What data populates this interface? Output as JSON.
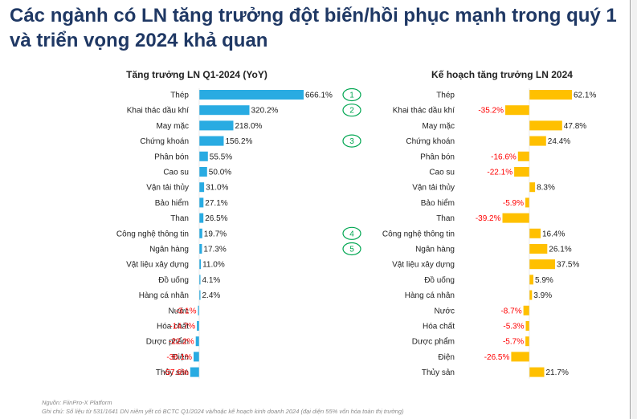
{
  "title_line1": "Các ngành có LN tăng trưởng đột biến/hồi phục mạnh trong quý 1",
  "title_line2": "và triển vọng 2024 khả quan",
  "footer": {
    "source": "Nguồn: FiinPro-X Platform",
    "note": "Ghi chú: Số liệu từ 531/1641 DN niêm yết có BCTC Q1/2024 và/hoặc kế hoạch kinh doanh 2024 (đại diện 55% vốn hóa toàn thị trường)"
  },
  "colors": {
    "left_bar": "#29abe2",
    "right_bar": "#ffc000",
    "negative_label": "#ff0000",
    "marker": "#00a651",
    "title": "#1f3864"
  },
  "chart_data": [
    {
      "type": "bar",
      "orientation": "horizontal",
      "title": "Tăng trưởng LN Q1-2024 (YoY)",
      "categories": [
        "Thép",
        "Khai thác dầu khí",
        "May mặc",
        "Chứng khoán",
        "Phân bón",
        "Cao su",
        "Vận tải thủy",
        "Bảo hiểm",
        "Than",
        "Công nghệ thông tin",
        "Ngân hàng",
        "Vật liệu xây dựng",
        "Đồ uống",
        "Hàng cá nhân",
        "Nước",
        "Hóa chất",
        "Dược phẩm",
        "Điện",
        "Thủy sản"
      ],
      "values": [
        666.1,
        320.2,
        218.0,
        156.2,
        55.5,
        50.0,
        31.0,
        27.1,
        26.5,
        19.7,
        17.3,
        11.0,
        4.1,
        2.4,
        -3.1,
        -14.7,
        -22.2,
        -36.1,
        -57.6
      ],
      "value_labels": [
        "666.1%",
        "320.2%",
        "218.0%",
        "156.2%",
        "55.5%",
        "50.0%",
        "31.0%",
        "27.1%",
        "26.5%",
        "19.7%",
        "17.3%",
        "11.0%",
        "4.1%",
        "2.4%",
        "-3.1%",
        "-14.7%",
        "-22.2%",
        "-36.1%",
        "-57.6%"
      ],
      "markers": [
        {
          "category_index": 0,
          "label": "1"
        },
        {
          "category_index": 1,
          "label": "2"
        },
        {
          "category_index": 3,
          "label": "3"
        },
        {
          "category_index": 9,
          "label": "4"
        },
        {
          "category_index": 10,
          "label": "5"
        }
      ]
    },
    {
      "type": "bar",
      "orientation": "horizontal",
      "title": "Kế hoạch tăng trưởng LN 2024",
      "categories": [
        "Thép",
        "Khai thác dầu khí",
        "May mặc",
        "Chứng khoán",
        "Phân bón",
        "Cao su",
        "Vận tải thủy",
        "Bảo hiểm",
        "Than",
        "Công nghệ thông tin",
        "Ngân hàng",
        "Vật liệu xây dựng",
        "Đồ uống",
        "Hàng cá nhân",
        "Nước",
        "Hóa chất",
        "Dược phẩm",
        "Điện",
        "Thủy sản"
      ],
      "values": [
        62.1,
        -35.2,
        47.8,
        24.4,
        -16.6,
        -22.1,
        8.3,
        -5.9,
        -39.2,
        16.4,
        26.1,
        37.5,
        5.9,
        3.9,
        -8.7,
        -5.3,
        -5.7,
        -26.5,
        21.7
      ],
      "value_labels": [
        "62.1%",
        "-35.2%",
        "47.8%",
        "24.4%",
        "-16.6%",
        "-22.1%",
        "8.3%",
        "-5.9%",
        "-39.2%",
        "16.4%",
        "26.1%",
        "37.5%",
        "5.9%",
        "3.9%",
        "-8.7%",
        "-5.3%",
        "-5.7%",
        "-26.5%",
        "21.7%"
      ]
    }
  ]
}
